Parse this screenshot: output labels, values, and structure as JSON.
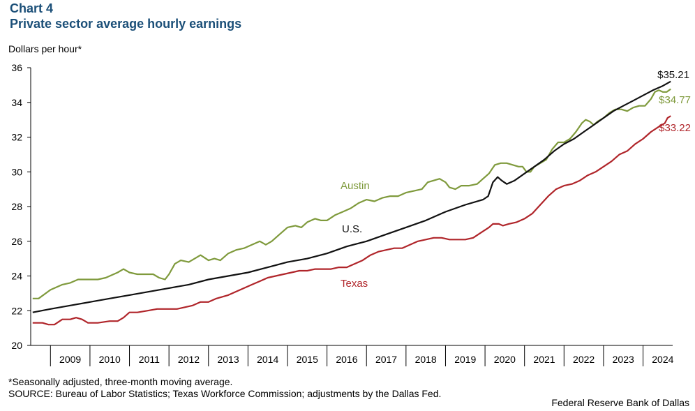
{
  "header": {
    "chart_label": "Chart 4",
    "title": "Private sector average hourly earnings"
  },
  "colors": {
    "austin": "#7f9a3c",
    "us": "#111111",
    "texas": "#b0252a",
    "title": "#1b4f78"
  },
  "footer": {
    "note": "*Seasonally adjusted, three-month moving average.",
    "source": "SOURCE: Bureau of Labor Statistics; Texas Workforce Commission; adjustments by the Dallas Fed.",
    "credit": "Federal Reserve Bank of Dallas"
  },
  "chart_data": {
    "type": "line",
    "title": "Private sector average hourly earnings",
    "ylabel": "Dollars per hour*",
    "xlabel": "",
    "ylim": [
      20,
      36
    ],
    "yticks": [
      "20",
      "22",
      "24",
      "26",
      "28",
      "30",
      "32",
      "34",
      "36"
    ],
    "xlim": [
      2008.5,
      2024.75
    ],
    "xtick_labels": [
      "2009",
      "2010",
      "2011",
      "2012",
      "2013",
      "2014",
      "2015",
      "2016",
      "2017",
      "2018",
      "2019",
      "2020",
      "2021",
      "2022",
      "2023",
      "2024"
    ],
    "series": [
      {
        "name": "Austin",
        "label": "Austin",
        "end_label": "$34.77",
        "points": [
          [
            2008.55,
            22.7
          ],
          [
            2008.7,
            22.7
          ],
          [
            2009.0,
            23.2
          ],
          [
            2009.3,
            23.5
          ],
          [
            2009.5,
            23.6
          ],
          [
            2009.7,
            23.8
          ],
          [
            2010.0,
            23.8
          ],
          [
            2010.2,
            23.8
          ],
          [
            2010.4,
            23.9
          ],
          [
            2010.7,
            24.2
          ],
          [
            2010.85,
            24.4
          ],
          [
            2011.0,
            24.2
          ],
          [
            2011.2,
            24.1
          ],
          [
            2011.4,
            24.1
          ],
          [
            2011.6,
            24.1
          ],
          [
            2011.75,
            23.9
          ],
          [
            2011.9,
            23.8
          ],
          [
            2012.0,
            24.1
          ],
          [
            2012.15,
            24.7
          ],
          [
            2012.3,
            24.9
          ],
          [
            2012.5,
            24.8
          ],
          [
            2012.65,
            25.0
          ],
          [
            2012.8,
            25.2
          ],
          [
            2013.0,
            24.9
          ],
          [
            2013.15,
            25.0
          ],
          [
            2013.3,
            24.9
          ],
          [
            2013.5,
            25.3
          ],
          [
            2013.7,
            25.5
          ],
          [
            2013.9,
            25.6
          ],
          [
            2014.1,
            25.8
          ],
          [
            2014.3,
            26.0
          ],
          [
            2014.45,
            25.8
          ],
          [
            2014.6,
            26.0
          ],
          [
            2014.8,
            26.4
          ],
          [
            2015.0,
            26.8
          ],
          [
            2015.2,
            26.9
          ],
          [
            2015.35,
            26.8
          ],
          [
            2015.5,
            27.1
          ],
          [
            2015.7,
            27.3
          ],
          [
            2015.85,
            27.2
          ],
          [
            2016.0,
            27.2
          ],
          [
            2016.2,
            27.5
          ],
          [
            2016.4,
            27.7
          ],
          [
            2016.6,
            27.9
          ],
          [
            2016.8,
            28.2
          ],
          [
            2017.0,
            28.4
          ],
          [
            2017.2,
            28.3
          ],
          [
            2017.4,
            28.5
          ],
          [
            2017.6,
            28.6
          ],
          [
            2017.8,
            28.6
          ],
          [
            2018.0,
            28.8
          ],
          [
            2018.2,
            28.9
          ],
          [
            2018.4,
            29.0
          ],
          [
            2018.55,
            29.4
          ],
          [
            2018.7,
            29.5
          ],
          [
            2018.85,
            29.6
          ],
          [
            2019.0,
            29.4
          ],
          [
            2019.1,
            29.1
          ],
          [
            2019.25,
            29.0
          ],
          [
            2019.4,
            29.2
          ],
          [
            2019.6,
            29.2
          ],
          [
            2019.8,
            29.3
          ],
          [
            2019.95,
            29.6
          ],
          [
            2020.1,
            29.9
          ],
          [
            2020.25,
            30.4
          ],
          [
            2020.4,
            30.5
          ],
          [
            2020.55,
            30.5
          ],
          [
            2020.7,
            30.4
          ],
          [
            2020.85,
            30.3
          ],
          [
            2020.95,
            30.3
          ],
          [
            2021.05,
            30.0
          ],
          [
            2021.15,
            30.0
          ],
          [
            2021.25,
            30.3
          ],
          [
            2021.4,
            30.5
          ],
          [
            2021.55,
            30.7
          ],
          [
            2021.7,
            31.3
          ],
          [
            2021.85,
            31.7
          ],
          [
            2022.0,
            31.7
          ],
          [
            2022.15,
            31.9
          ],
          [
            2022.3,
            32.3
          ],
          [
            2022.45,
            32.8
          ],
          [
            2022.55,
            33.0
          ],
          [
            2022.65,
            32.9
          ],
          [
            2022.75,
            32.7
          ],
          [
            2022.85,
            32.9
          ],
          [
            2023.0,
            33.1
          ],
          [
            2023.15,
            33.4
          ],
          [
            2023.3,
            33.6
          ],
          [
            2023.45,
            33.6
          ],
          [
            2023.6,
            33.5
          ],
          [
            2023.75,
            33.7
          ],
          [
            2023.9,
            33.8
          ],
          [
            2024.05,
            33.8
          ],
          [
            2024.2,
            34.2
          ],
          [
            2024.3,
            34.6
          ],
          [
            2024.4,
            34.7
          ],
          [
            2024.5,
            34.6
          ],
          [
            2024.6,
            34.6
          ],
          [
            2024.7,
            34.77
          ]
        ]
      },
      {
        "name": "U.S.",
        "label": "U.S.",
        "end_label": "$35.21",
        "points": [
          [
            2008.55,
            21.9
          ],
          [
            2009.0,
            22.1
          ],
          [
            2009.5,
            22.3
          ],
          [
            2010.0,
            22.5
          ],
          [
            2010.5,
            22.7
          ],
          [
            2011.0,
            22.9
          ],
          [
            2011.5,
            23.1
          ],
          [
            2012.0,
            23.3
          ],
          [
            2012.5,
            23.5
          ],
          [
            2013.0,
            23.8
          ],
          [
            2013.5,
            24.0
          ],
          [
            2014.0,
            24.2
          ],
          [
            2014.5,
            24.5
          ],
          [
            2015.0,
            24.8
          ],
          [
            2015.5,
            25.0
          ],
          [
            2016.0,
            25.3
          ],
          [
            2016.5,
            25.7
          ],
          [
            2017.0,
            26.0
          ],
          [
            2017.5,
            26.4
          ],
          [
            2018.0,
            26.8
          ],
          [
            2018.5,
            27.2
          ],
          [
            2019.0,
            27.7
          ],
          [
            2019.5,
            28.1
          ],
          [
            2019.95,
            28.4
          ],
          [
            2020.08,
            28.6
          ],
          [
            2020.2,
            29.4
          ],
          [
            2020.32,
            29.7
          ],
          [
            2020.42,
            29.5
          ],
          [
            2020.55,
            29.3
          ],
          [
            2020.75,
            29.5
          ],
          [
            2021.0,
            29.9
          ],
          [
            2021.25,
            30.3
          ],
          [
            2021.5,
            30.7
          ],
          [
            2021.75,
            31.2
          ],
          [
            2022.0,
            31.6
          ],
          [
            2022.25,
            31.9
          ],
          [
            2022.5,
            32.3
          ],
          [
            2022.75,
            32.7
          ],
          [
            2023.0,
            33.1
          ],
          [
            2023.25,
            33.5
          ],
          [
            2023.5,
            33.8
          ],
          [
            2023.75,
            34.1
          ],
          [
            2024.0,
            34.4
          ],
          [
            2024.25,
            34.7
          ],
          [
            2024.5,
            34.95
          ],
          [
            2024.7,
            35.21
          ]
        ]
      },
      {
        "name": "Texas",
        "label": "Texas",
        "end_label": "$33.22",
        "points": [
          [
            2008.55,
            21.3
          ],
          [
            2008.8,
            21.3
          ],
          [
            2008.95,
            21.2
          ],
          [
            2009.1,
            21.2
          ],
          [
            2009.3,
            21.5
          ],
          [
            2009.5,
            21.5
          ],
          [
            2009.65,
            21.6
          ],
          [
            2009.8,
            21.5
          ],
          [
            2009.95,
            21.3
          ],
          [
            2010.2,
            21.3
          ],
          [
            2010.5,
            21.4
          ],
          [
            2010.7,
            21.4
          ],
          [
            2010.85,
            21.6
          ],
          [
            2011.0,
            21.9
          ],
          [
            2011.2,
            21.9
          ],
          [
            2011.45,
            22.0
          ],
          [
            2011.7,
            22.1
          ],
          [
            2011.9,
            22.1
          ],
          [
            2012.2,
            22.1
          ],
          [
            2012.4,
            22.2
          ],
          [
            2012.6,
            22.3
          ],
          [
            2012.8,
            22.5
          ],
          [
            2013.0,
            22.5
          ],
          [
            2013.2,
            22.7
          ],
          [
            2013.5,
            22.9
          ],
          [
            2013.7,
            23.1
          ],
          [
            2013.9,
            23.3
          ],
          [
            2014.1,
            23.5
          ],
          [
            2014.3,
            23.7
          ],
          [
            2014.5,
            23.9
          ],
          [
            2014.7,
            24.0
          ],
          [
            2014.9,
            24.1
          ],
          [
            2015.1,
            24.2
          ],
          [
            2015.3,
            24.3
          ],
          [
            2015.5,
            24.3
          ],
          [
            2015.7,
            24.4
          ],
          [
            2015.9,
            24.4
          ],
          [
            2016.1,
            24.4
          ],
          [
            2016.3,
            24.5
          ],
          [
            2016.5,
            24.5
          ],
          [
            2016.7,
            24.7
          ],
          [
            2016.9,
            24.9
          ],
          [
            2017.1,
            25.2
          ],
          [
            2017.3,
            25.4
          ],
          [
            2017.5,
            25.5
          ],
          [
            2017.7,
            25.6
          ],
          [
            2017.9,
            25.6
          ],
          [
            2018.1,
            25.8
          ],
          [
            2018.3,
            26.0
          ],
          [
            2018.5,
            26.1
          ],
          [
            2018.7,
            26.2
          ],
          [
            2018.9,
            26.2
          ],
          [
            2019.1,
            26.1
          ],
          [
            2019.3,
            26.1
          ],
          [
            2019.5,
            26.1
          ],
          [
            2019.7,
            26.2
          ],
          [
            2019.9,
            26.5
          ],
          [
            2020.1,
            26.8
          ],
          [
            2020.2,
            27.0
          ],
          [
            2020.35,
            27.0
          ],
          [
            2020.45,
            26.9
          ],
          [
            2020.6,
            27.0
          ],
          [
            2020.8,
            27.1
          ],
          [
            2021.0,
            27.3
          ],
          [
            2021.2,
            27.6
          ],
          [
            2021.4,
            28.1
          ],
          [
            2021.6,
            28.6
          ],
          [
            2021.8,
            29.0
          ],
          [
            2022.0,
            29.2
          ],
          [
            2022.2,
            29.3
          ],
          [
            2022.4,
            29.5
          ],
          [
            2022.6,
            29.8
          ],
          [
            2022.8,
            30.0
          ],
          [
            2023.0,
            30.3
          ],
          [
            2023.2,
            30.6
          ],
          [
            2023.4,
            31.0
          ],
          [
            2023.6,
            31.2
          ],
          [
            2023.8,
            31.6
          ],
          [
            2024.0,
            31.9
          ],
          [
            2024.2,
            32.3
          ],
          [
            2024.4,
            32.6
          ],
          [
            2024.55,
            32.8
          ],
          [
            2024.62,
            33.1
          ],
          [
            2024.7,
            33.22
          ]
        ]
      }
    ]
  }
}
